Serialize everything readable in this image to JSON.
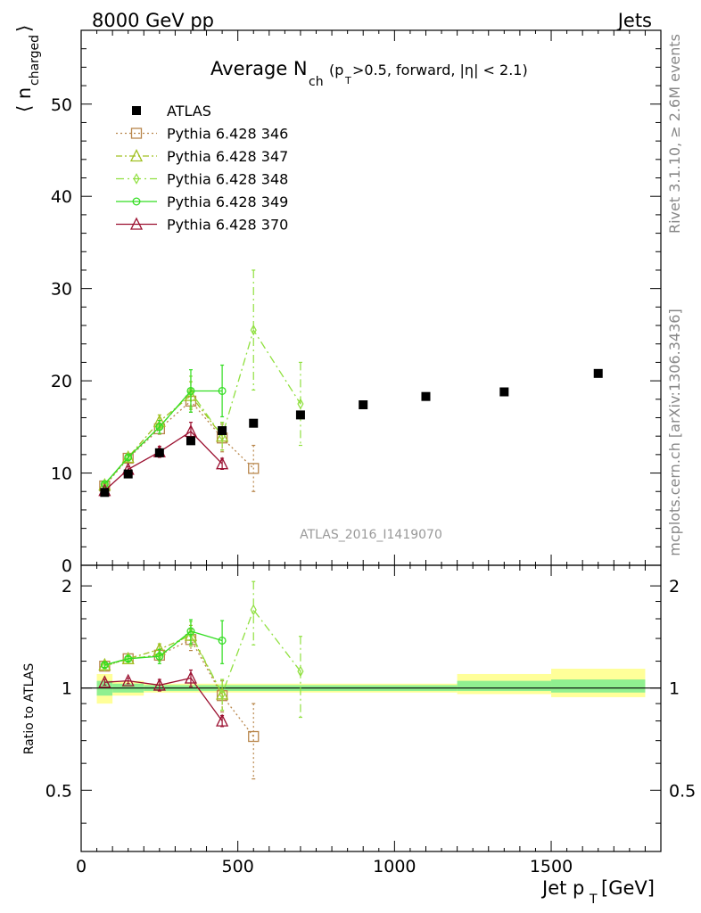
{
  "header": {
    "left": "8000 GeV pp",
    "right": "Jets",
    "title_main": "Average N",
    "title_sub": "ch",
    "title_paren_open": "(p",
    "title_paren_sub": "T",
    "title_paren_rest": ">0.5, forward, |η| < 2.1)"
  },
  "side_labels": {
    "rivet": "Rivet 3.1.10, ≥ 2.6M events",
    "mcplots": "mcplots.cern.ch [arXiv:1306.3436]"
  },
  "watermark": "ATLAS_2016_I1419070",
  "axes": {
    "ylabel_main": "⟨ n",
    "ylabel_sub": "charged",
    "ylabel_close": "⟩",
    "ratio_ylabel": "Ratio to ATLAS",
    "xlabel_main": "Jet p",
    "xlabel_sub": "T",
    "xlabel_unit": "[GeV]"
  },
  "chart_data": {
    "type": "line",
    "xlim": [
      0,
      1850
    ],
    "ylim_main": [
      0,
      58
    ],
    "ylim_ratio": [
      0.33,
      2.3
    ],
    "x_ticks": [
      0,
      500,
      1000,
      1500
    ],
    "x_tick_labels": [
      "0",
      "500",
      "1000",
      "1500"
    ],
    "y_ticks_main": [
      0,
      10,
      20,
      30,
      40,
      50
    ],
    "y_tick_labels_main": [
      "0",
      "10",
      "20",
      "30",
      "40",
      "50"
    ],
    "y_ticks_ratio": [
      0.5,
      1,
      2
    ],
    "y_tick_labels_ratio": [
      "0.5",
      "1",
      "2"
    ],
    "reference": {
      "name": "ATLAS",
      "color": "#000000",
      "x": [
        75,
        150,
        250,
        350,
        450,
        550,
        700,
        900,
        1100,
        1350,
        1650
      ],
      "y": [
        7.9,
        9.9,
        12.2,
        13.5,
        14.6,
        15.4,
        16.3,
        17.4,
        18.3,
        18.8,
        20.8
      ]
    },
    "ratio_bands": [
      {
        "x0": 50,
        "x1": 100,
        "g0": 0.95,
        "g1": 1.05,
        "y0": 0.9,
        "y1": 1.1
      },
      {
        "x0": 100,
        "x1": 200,
        "g0": 0.97,
        "g1": 1.03,
        "y0": 0.95,
        "y1": 1.05
      },
      {
        "x0": 200,
        "x1": 1200,
        "g0": 0.98,
        "g1": 1.02,
        "y0": 0.97,
        "y1": 1.03
      },
      {
        "x0": 1200,
        "x1": 1500,
        "g0": 0.98,
        "g1": 1.05,
        "y0": 0.96,
        "y1": 1.1
      },
      {
        "x0": 1500,
        "x1": 1800,
        "g0": 0.97,
        "g1": 1.06,
        "y0": 0.94,
        "y1": 1.14
      }
    ],
    "band_colors": {
      "inner": "#90f090",
      "outer": "#ffff99"
    },
    "series": [
      {
        "name": "Pythia 6.428 346",
        "color": "#b8864b",
        "dash": "2,3",
        "marker": "square",
        "x": [
          75,
          150,
          250,
          350,
          450,
          550
        ],
        "y": [
          8.6,
          11.6,
          14.8,
          17.8,
          13.8,
          10.5
        ],
        "err": [
          0.2,
          0.3,
          0.6,
          1.2,
          1.5,
          2.5
        ],
        "ratio": [
          1.16,
          1.22,
          1.25,
          1.39,
          0.95,
          0.72
        ],
        "ratio_err": [
          0.02,
          0.02,
          0.04,
          0.1,
          0.1,
          0.18
        ]
      },
      {
        "name": "Pythia 6.428 347",
        "color": "#a0c020",
        "dash": "7,3,2,3",
        "marker": "triangle",
        "x": [
          75,
          150,
          250,
          350,
          450
        ],
        "y": [
          8.7,
          11.7,
          15.6,
          18.4,
          14.0
        ],
        "err": [
          0.2,
          0.3,
          0.7,
          1.5,
          1.5
        ],
        "ratio": [
          1.17,
          1.22,
          1.3,
          1.43,
          0.96
        ],
        "ratio_err": [
          0.02,
          0.02,
          0.05,
          0.1,
          0.1
        ]
      },
      {
        "name": "Pythia 6.428 348",
        "color": "#90e040",
        "dash": "9,4,2,4",
        "marker": "diamond",
        "x": [
          75,
          150,
          250,
          350,
          450,
          550,
          700
        ],
        "y": [
          8.8,
          11.7,
          15.0,
          18.8,
          14.0,
          25.5,
          17.5
        ],
        "err": [
          0.2,
          0.3,
          0.7,
          1.7,
          1.5,
          6.5,
          4.5
        ],
        "ratio": [
          1.16,
          1.22,
          1.25,
          1.45,
          0.96,
          1.7,
          1.12
        ],
        "ratio_err": [
          0.02,
          0.02,
          0.05,
          0.12,
          0.1,
          0.36,
          0.3
        ]
      },
      {
        "name": "Pythia 6.428 349",
        "color": "#33dd22",
        "dash": "",
        "marker": "circle",
        "x": [
          75,
          150,
          250,
          350,
          450
        ],
        "y": [
          8.8,
          11.7,
          15.0,
          18.9,
          18.9
        ],
        "err": [
          0.2,
          0.3,
          0.7,
          2.3,
          2.8
        ],
        "ratio": [
          1.17,
          1.22,
          1.24,
          1.47,
          1.38
        ],
        "ratio_err": [
          0.02,
          0.02,
          0.06,
          0.12,
          0.2
        ]
      },
      {
        "name": "Pythia 6.428 370",
        "color": "#9b1030",
        "dash": "",
        "marker": "triangle",
        "x": [
          75,
          150,
          250,
          350,
          450
        ],
        "y": [
          8.1,
          10.4,
          12.3,
          14.5,
          11.0
        ],
        "err": [
          0.2,
          0.3,
          0.6,
          1.0,
          0.6
        ],
        "ratio": [
          1.04,
          1.05,
          1.02,
          1.07,
          0.8
        ],
        "ratio_err": [
          0.02,
          0.02,
          0.04,
          0.06,
          0.03
        ]
      }
    ]
  }
}
